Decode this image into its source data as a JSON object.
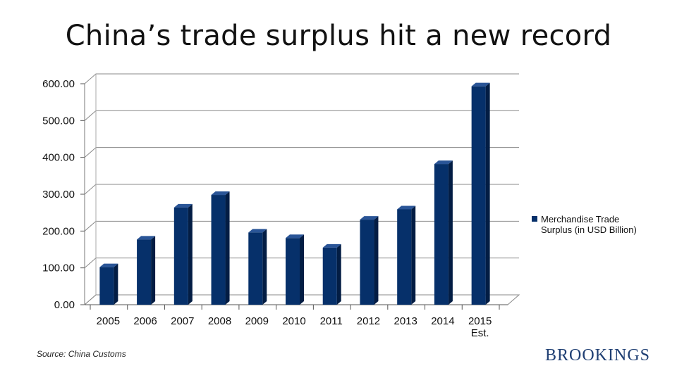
{
  "page": {
    "title": "China’s trade surplus hit a new record",
    "source": "Source: China Customs",
    "brand": "BROOKINGS"
  },
  "colors": {
    "bar_front": "#06306a",
    "bar_side": "#031d44",
    "bar_top": "#2a5597",
    "brand": "#1f3f73",
    "grid": "#8a8a8a"
  },
  "chart_data": {
    "type": "bar",
    "categories": [
      "2005",
      "2006",
      "2007",
      "2008",
      "2009",
      "2010",
      "2011",
      "2012",
      "2013",
      "2014",
      "2015 Est."
    ],
    "series": [
      {
        "name": "Merchandise Trade Surplus (in USD Billion)",
        "values": [
          102,
          177,
          264,
          298,
          196,
          181,
          155,
          231,
          259,
          382,
          593
        ]
      }
    ],
    "yticks": [
      "0.00",
      "100.00",
      "200.00",
      "300.00",
      "400.00",
      "500.00",
      "600.00"
    ],
    "ylim": [
      0,
      600
    ],
    "title": "China’s trade surplus hit a new record",
    "xlabel": "",
    "ylabel": "",
    "grid": true,
    "legend_position": "right"
  }
}
